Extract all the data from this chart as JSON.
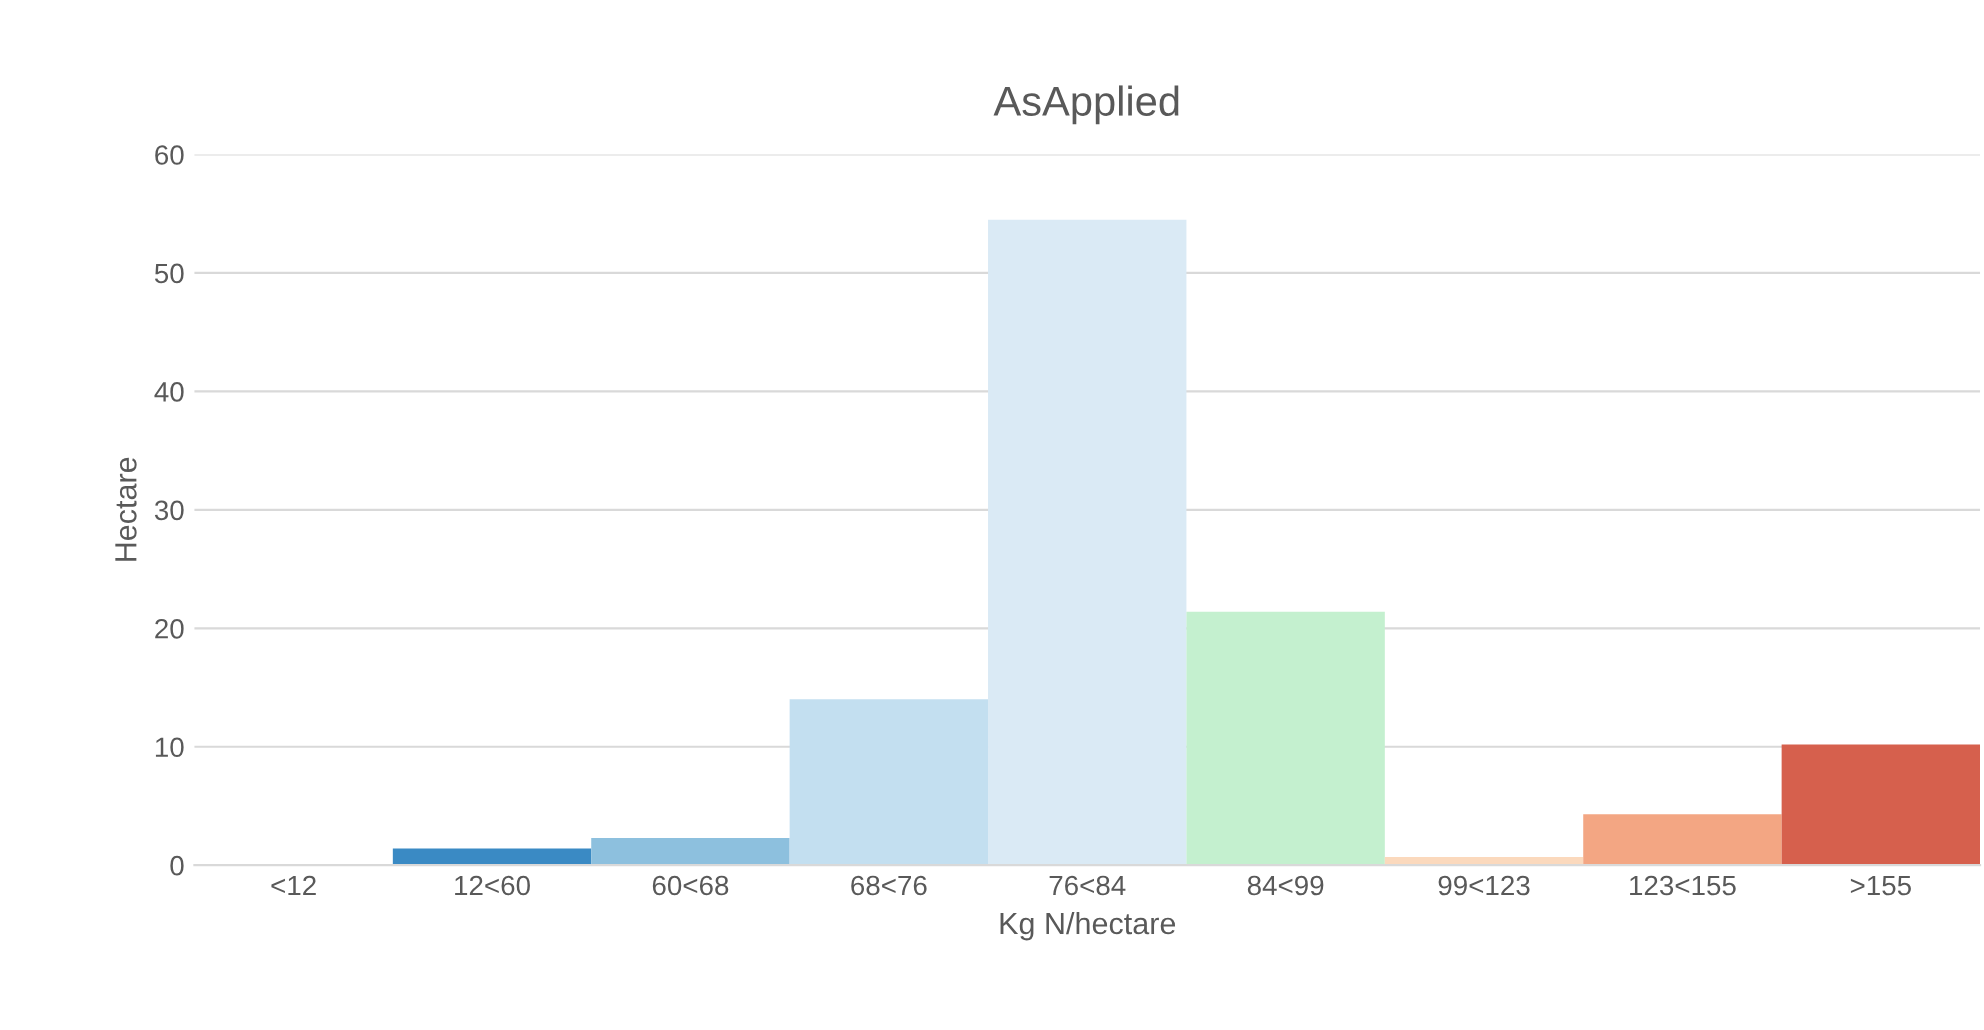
{
  "chart_data": {
    "type": "bar",
    "title": "AsApplied",
    "xlabel": "Kg N/hectare",
    "ylabel": "Hectare",
    "categories": [
      "<12",
      "12<60",
      "60<68",
      "68<76",
      "76<84",
      "84<99",
      "99<123",
      "123<155",
      ">155"
    ],
    "values": [
      0,
      1.4,
      2.3,
      14,
      54.5,
      21.4,
      0.7,
      4.3,
      10.2
    ],
    "colors": [
      "#2166ac",
      "#3a8ac4",
      "#8dc0de",
      "#c3dff0",
      "#daeaf5",
      "#c4f0cf",
      "#fbd9bd",
      "#f3a683",
      "#d6604d"
    ],
    "ylim": [
      0,
      60
    ],
    "yticks": [
      0,
      10,
      20,
      30,
      40,
      50,
      60
    ],
    "grid": "y",
    "legend": false
  }
}
